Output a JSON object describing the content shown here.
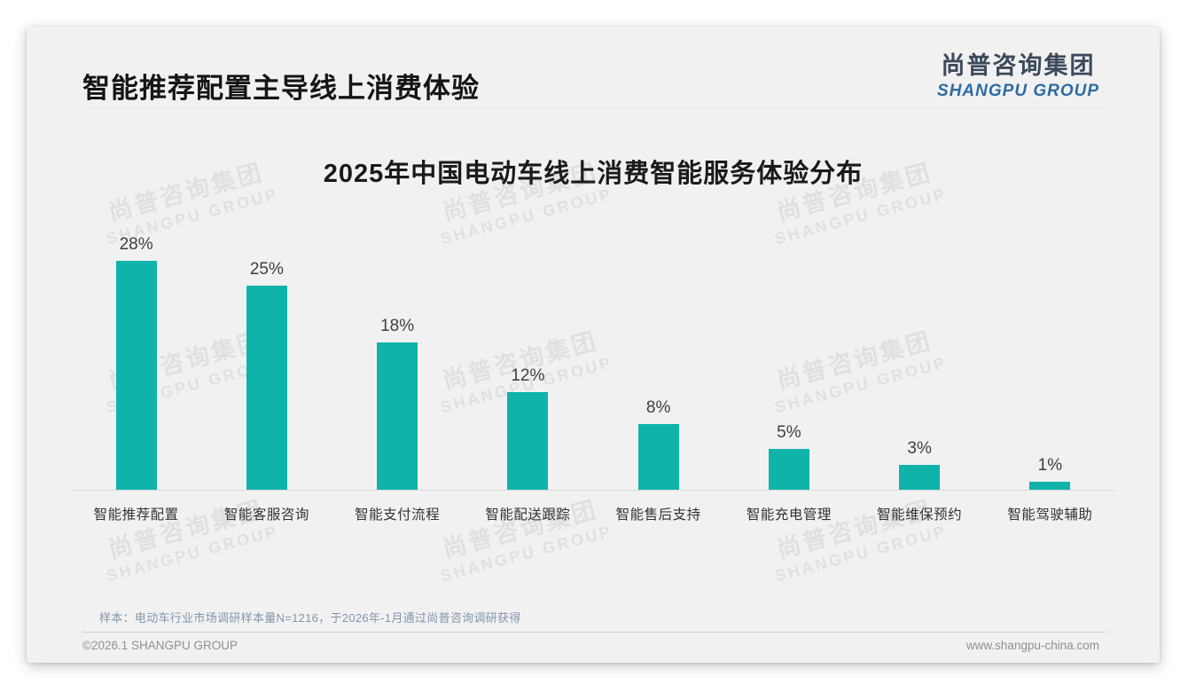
{
  "page": {
    "title": "智能推荐配置主导线上消费体验",
    "sample_note": "样本：电动车行业市场调研样本量N=1216，于2026年-1月通过尚普咨询调研获得",
    "footer_left": "©2026.1 SHANGPU GROUP",
    "footer_right": "www.shangpu-china.com"
  },
  "logo": {
    "cn": "尚普咨询集团",
    "en": "SHANGPU GROUP"
  },
  "watermark": {
    "cn": "尚普咨询集团",
    "en": "SHANGPU GROUP"
  },
  "chart_data": {
    "type": "bar",
    "title": "2025年中国电动车线上消费智能服务体验分布",
    "categories": [
      "智能推荐配置",
      "智能客服咨询",
      "智能支付流程",
      "智能配送跟踪",
      "智能售后支持",
      "智能充电管理",
      "智能维保预约",
      "智能驾驶辅助"
    ],
    "values": [
      28,
      25,
      18,
      12,
      8,
      5,
      3,
      1
    ],
    "value_labels": [
      "28%",
      "25%",
      "18%",
      "12%",
      "8%",
      "5%",
      "3%",
      "1%"
    ],
    "unit": "%",
    "bar_color": "#10b3aa",
    "ylim": [
      0,
      30
    ],
    "grid": false,
    "legend": "none",
    "xlabel": "",
    "ylabel": ""
  }
}
